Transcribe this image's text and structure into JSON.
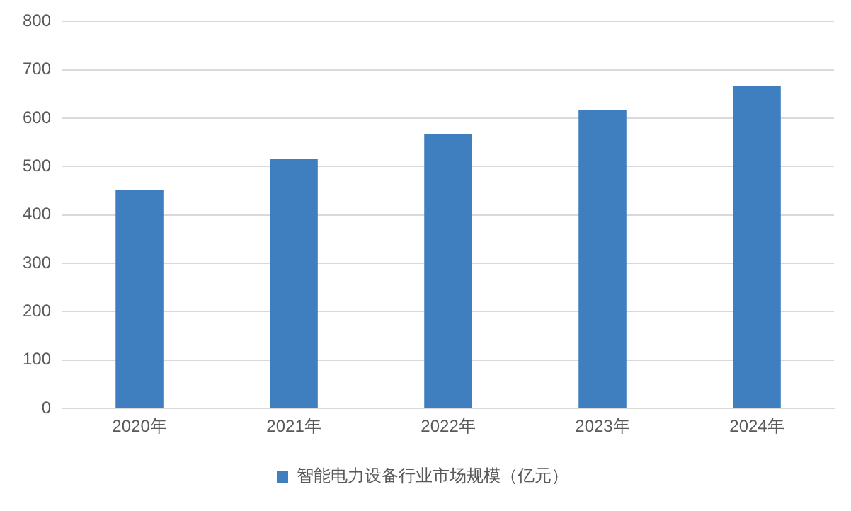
{
  "chart_data": {
    "type": "bar",
    "categories": [
      "2020年",
      "2021年",
      "2022年",
      "2023年",
      "2024年"
    ],
    "series": [
      {
        "name": "智能电力设备行业市场规模（亿元）",
        "color": "#3f7fc0",
        "values": [
          452,
          516,
          568,
          617,
          666
        ]
      }
    ],
    "ylim": [
      0,
      800
    ],
    "yticks": [
      0,
      100,
      200,
      300,
      400,
      500,
      600,
      700,
      800
    ],
    "grid": "y",
    "legend": "bottom"
  }
}
